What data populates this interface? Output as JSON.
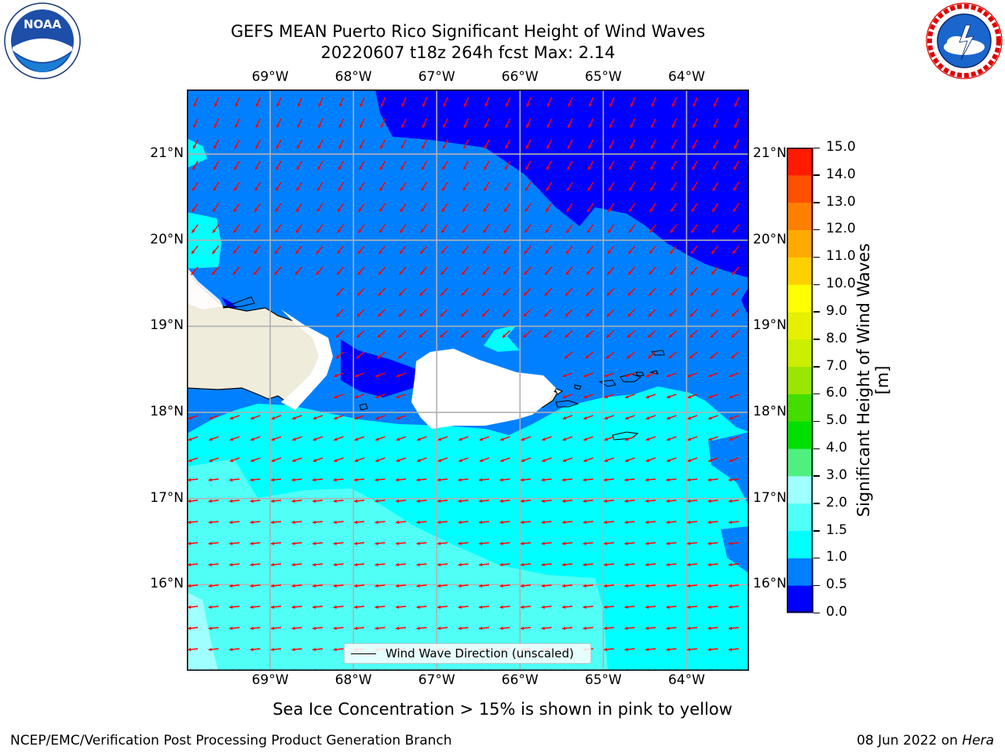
{
  "title": {
    "line1": "GEFS MEAN Puerto Rico Significant Height of Wind Waves",
    "line2": "20220607 t18z 264h fcst   Max: 2.14"
  },
  "logos": {
    "left": "noaa-logo",
    "right": "national-weather-service-logo",
    "noaa_text": "NOAA"
  },
  "map": {
    "lon_ticks": [
      "69°W",
      "68°W",
      "67°W",
      "66°W",
      "65°W",
      "64°W"
    ],
    "lat_ticks": [
      "21°N",
      "20°N",
      "19°N",
      "18°N",
      "17°N",
      "16°N"
    ],
    "lon_values": [
      -69,
      -68,
      -67,
      -66,
      -65,
      -64
    ],
    "lat_values": [
      21,
      20,
      19,
      18,
      17,
      16
    ],
    "extent": {
      "lon_min": -70.0,
      "lon_max": -63.25,
      "lat_min": 15.0,
      "lat_max": 21.75
    },
    "arrow_color": "#ff0000",
    "land_color": "#efecdc",
    "legend_text": "Wind Wave Direction (unscaled)"
  },
  "colorbar": {
    "title": "Significant Height of Wind Waves [m]",
    "levels": [
      "0.0",
      "0.5",
      "1.0",
      "1.5",
      "2.0",
      "3.0",
      "4.0",
      "5.0",
      "6.0",
      "7.0",
      "8.0",
      "9.0",
      "10.0",
      "11.0",
      "12.0",
      "13.0",
      "14.0",
      "15.0"
    ],
    "colors": [
      "#0000ff",
      "#0080ff",
      "#00ffff",
      "#50fff5",
      "#a0ffff",
      "#50f080",
      "#00e000",
      "#44dd00",
      "#9ae600",
      "#ccee00",
      "#e6f000",
      "#ffff00",
      "#ffd000",
      "#ffaa00",
      "#ff8000",
      "#ff5000",
      "#ff1a00"
    ]
  },
  "subnote": "Sea Ice Concentration > 15% is shown in pink to yellow",
  "footer": {
    "left": "NCEP/EMC/Verification Post Processing Product Generation Branch",
    "right_date": "08 Jun 2022 on ",
    "right_host": "Hera"
  }
}
